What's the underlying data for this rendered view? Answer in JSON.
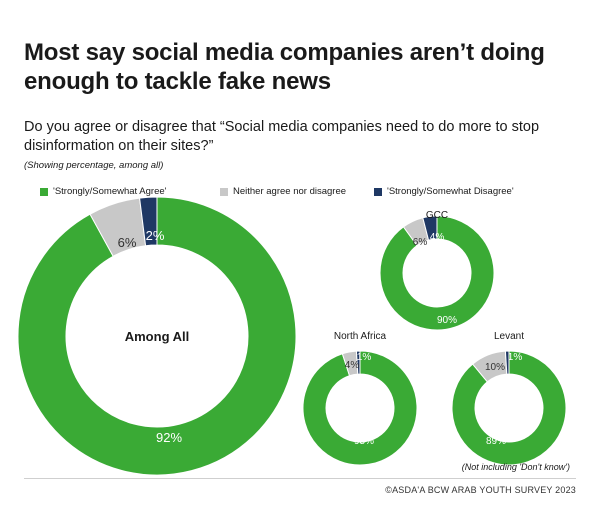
{
  "chart_data": {
    "type": "pie",
    "title": "Most say social media companies aren’t doing enough to tackle fake news",
    "question": "Do you agree or disagree that “Social media companies need to do more to stop disinformation on their sites?”",
    "note": "(Showing percentage, among all)",
    "legend": {
      "placement": "top",
      "items": [
        {
          "label": "'Strongly/Somewhat Agree'",
          "color": "#3aaa35"
        },
        {
          "label": "Neither agree nor disagree",
          "color": "#c8c8c8"
        },
        {
          "label": "'Strongly/Somewhat Disagree'",
          "color": "#1f3864"
        }
      ]
    },
    "categories": [
      "'Strongly/Somewhat Agree'",
      "Neither agree nor disagree",
      "'Strongly/Somewhat Disagree'"
    ],
    "donuts": [
      {
        "name": "Among All",
        "values": [
          92,
          6,
          2
        ],
        "labels": [
          "92%",
          "6%",
          "2%"
        ]
      },
      {
        "name": "GCC",
        "values": [
          90,
          6,
          4
        ],
        "labels": [
          "90%",
          "6%",
          "4%"
        ]
      },
      {
        "name": "North Africa",
        "values": [
          95,
          4,
          1
        ],
        "labels": [
          "95%",
          "4%",
          "1%"
        ]
      },
      {
        "name": "Levant",
        "values": [
          89,
          10,
          1
        ],
        "labels": [
          "89%",
          "10%",
          "1%"
        ]
      }
    ],
    "footnote": "(Not including 'Don't know')",
    "source": "©ASDA'A BCW ARAB YOUTH SURVEY 2023"
  }
}
